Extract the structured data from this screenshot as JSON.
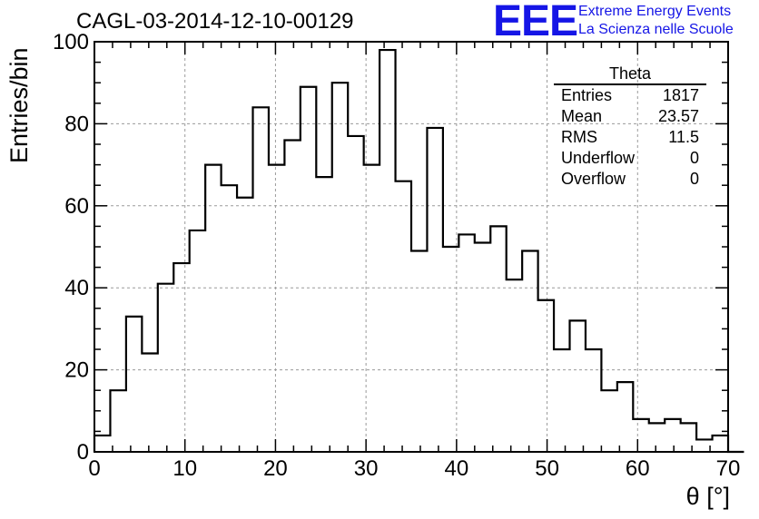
{
  "header": {
    "run_id": "CAGL-03-2014-12-10-00129",
    "logo_text": "EEE",
    "logo_line1": "Extreme Energy Events",
    "logo_line2": "La Scienza nelle Scuole",
    "logo_color": "#1515e6"
  },
  "stats_box": {
    "title": "Theta",
    "rows": [
      {
        "label": "Entries",
        "value": "1817"
      },
      {
        "label": "Mean",
        "value": "23.57"
      },
      {
        "label": "RMS",
        "value": "11.5"
      },
      {
        "label": "Underflow",
        "value": "0"
      },
      {
        "label": "Overflow",
        "value": "0"
      }
    ]
  },
  "chart_data": {
    "type": "histogram",
    "title": "CAGL-03-2014-12-10-00129",
    "xlabel": "θ [°]",
    "ylabel": "Entries/bin",
    "xlim": [
      0,
      70
    ],
    "ylim": [
      0,
      100
    ],
    "grid": true,
    "xticks": [
      0,
      10,
      20,
      30,
      40,
      50,
      60,
      70
    ],
    "yticks": [
      0,
      20,
      40,
      60,
      80,
      100
    ],
    "bin_width": 1.75,
    "values": [
      4,
      15,
      33,
      24,
      41,
      46,
      54,
      70,
      65,
      62,
      84,
      70,
      76,
      89,
      67,
      90,
      77,
      70,
      98,
      66,
      49,
      79,
      50,
      53,
      51,
      55,
      42,
      49,
      37,
      25,
      32,
      25,
      15,
      17,
      8,
      7,
      8,
      7,
      3,
      4,
      0
    ]
  }
}
